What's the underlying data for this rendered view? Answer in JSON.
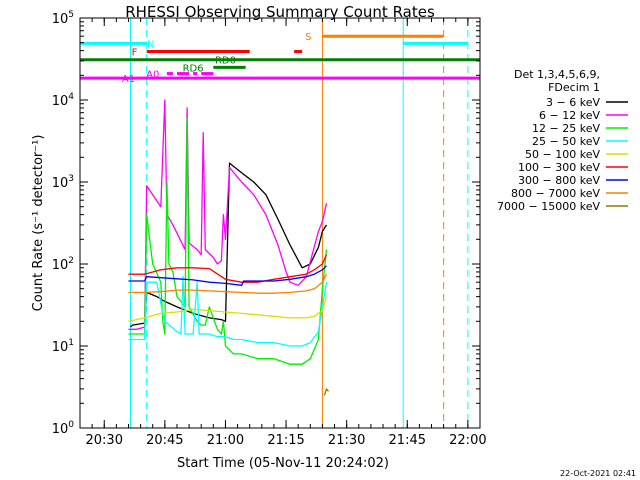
{
  "chart_data": {
    "type": "line",
    "title": "RHESSI Observing Summary Count Rates",
    "xlabel": "Start Time (05-Nov-11 20:24:02)",
    "ylabel": "Count Rate (s⁻¹ detector⁻¹)",
    "yscale": "log",
    "ylim": [
      1,
      100000
    ],
    "xlim_minutes_after_start": [
      0,
      99
    ],
    "x_ticks": [
      {
        "minute": 6,
        "label": "20:30"
      },
      {
        "minute": 21,
        "label": "20:45"
      },
      {
        "minute": 36,
        "label": "21:00"
      },
      {
        "minute": 51,
        "label": "21:15"
      },
      {
        "minute": 66,
        "label": "21:30"
      },
      {
        "minute": 81,
        "label": "21:45"
      },
      {
        "minute": 96,
        "label": "22:00"
      }
    ],
    "y_ticks": [
      {
        "value": 1,
        "base": "10",
        "exp": "0"
      },
      {
        "value": 10,
        "base": "10",
        "exp": "1"
      },
      {
        "value": 100,
        "base": "10",
        "exp": "2"
      },
      {
        "value": 1000,
        "base": "10",
        "exp": "3"
      },
      {
        "value": 10000,
        "base": "10",
        "exp": "4"
      },
      {
        "value": 100000,
        "base": "10",
        "exp": "5"
      }
    ],
    "legend": {
      "position": "right",
      "header": [
        "Det 1,3,4,5,6,9,",
        "FDecim 1"
      ],
      "entries": [
        {
          "label": "3 − 6 keV",
          "color": "#000000"
        },
        {
          "label": "6 − 12 keV",
          "color": "#ff00ff"
        },
        {
          "label": "12 − 25 keV",
          "color": "#00ee00"
        },
        {
          "label": "25 − 50 keV",
          "color": "#00ffff"
        },
        {
          "label": "50 − 100 keV",
          "color": "#dddd00"
        },
        {
          "label": "100 − 300 keV",
          "color": "#ff0000"
        },
        {
          "label": "300 − 800 keV",
          "color": "#0000ff"
        },
        {
          "label": "800 − 7000 keV",
          "color": "#ff7f00"
        },
        {
          "label": "7000 − 15000 keV",
          "color": "#808000"
        }
      ]
    },
    "series": [
      {
        "name": "3 − 6 keV",
        "color": "#000000",
        "points": [
          [
            12.5,
            17
          ],
          [
            13,
            18
          ],
          [
            16,
            19
          ],
          [
            16.5,
            45
          ],
          [
            19,
            40
          ],
          [
            21,
            35
          ],
          [
            24,
            30
          ],
          [
            28,
            25
          ],
          [
            32,
            22
          ],
          [
            35,
            21
          ],
          [
            36,
            20
          ],
          [
            37,
            1700
          ],
          [
            40,
            1300
          ],
          [
            43,
            1000
          ],
          [
            46,
            700
          ],
          [
            49,
            350
          ],
          [
            52,
            170
          ],
          [
            55,
            90
          ],
          [
            57,
            100
          ],
          [
            59,
            160
          ],
          [
            60,
            250
          ],
          [
            61,
            300
          ]
        ]
      },
      {
        "name": "6 − 12 keV",
        "color": "#ff00ff",
        "points": [
          [
            12,
            16
          ],
          [
            14,
            16
          ],
          [
            16,
            17
          ],
          [
            16.5,
            900
          ],
          [
            18,
            700
          ],
          [
            20,
            500
          ],
          [
            21,
            10000
          ],
          [
            21.5,
            400
          ],
          [
            23,
            300
          ],
          [
            26,
            150
          ],
          [
            26.5,
            8000
          ],
          [
            27,
            180
          ],
          [
            29,
            150
          ],
          [
            30,
            130
          ],
          [
            30.5,
            4000
          ],
          [
            31,
            150
          ],
          [
            33,
            120
          ],
          [
            34,
            100
          ],
          [
            35,
            110
          ],
          [
            35.5,
            400
          ],
          [
            36,
            200
          ],
          [
            37,
            1500
          ],
          [
            40,
            1000
          ],
          [
            43,
            700
          ],
          [
            46,
            400
          ],
          [
            49,
            170
          ],
          [
            51,
            80
          ],
          [
            52,
            60
          ],
          [
            54,
            55
          ],
          [
            56,
            70
          ],
          [
            59,
            250
          ],
          [
            60,
            330
          ],
          [
            61,
            550
          ]
        ]
      },
      {
        "name": "12 − 25 keV",
        "color": "#00ee00",
        "points": [
          [
            12,
            14
          ],
          [
            14,
            14
          ],
          [
            16,
            14
          ],
          [
            16.5,
            400
          ],
          [
            18,
            100
          ],
          [
            20,
            60
          ],
          [
            20.5,
            20
          ],
          [
            21,
            14
          ],
          [
            21.5,
            1000
          ],
          [
            22,
            100
          ],
          [
            23,
            80
          ],
          [
            24,
            40
          ],
          [
            26,
            30
          ],
          [
            26.5,
            6000
          ],
          [
            27,
            30
          ],
          [
            29,
            20
          ],
          [
            30,
            18
          ],
          [
            31,
            18
          ],
          [
            32,
            30
          ],
          [
            34,
            16
          ],
          [
            35,
            14
          ],
          [
            35.5,
            20
          ],
          [
            36,
            10
          ],
          [
            38,
            8
          ],
          [
            40,
            8
          ],
          [
            44,
            7
          ],
          [
            48,
            7
          ],
          [
            52,
            6
          ],
          [
            55,
            6
          ],
          [
            57,
            7
          ],
          [
            59,
            12
          ],
          [
            60,
            50
          ],
          [
            61,
            150
          ]
        ]
      },
      {
        "name": "25 − 50 keV",
        "color": "#00ffff",
        "points": [
          [
            12,
            12
          ],
          [
            14,
            12
          ],
          [
            16,
            12
          ],
          [
            16.5,
            60
          ],
          [
            19,
            60
          ],
          [
            20.5,
            25
          ],
          [
            21,
            20
          ],
          [
            24,
            15
          ],
          [
            25,
            14
          ],
          [
            25.5,
            70
          ],
          [
            26,
            14
          ],
          [
            28,
            14
          ],
          [
            29,
            60
          ],
          [
            29.5,
            14
          ],
          [
            32,
            14
          ],
          [
            34,
            13
          ],
          [
            36,
            13
          ],
          [
            38,
            12
          ],
          [
            40,
            12
          ],
          [
            44,
            11
          ],
          [
            48,
            11
          ],
          [
            52,
            10
          ],
          [
            55,
            10
          ],
          [
            57,
            11
          ],
          [
            59,
            15
          ],
          [
            60,
            30
          ],
          [
            61,
            60
          ]
        ]
      },
      {
        "name": "50 − 100 keV",
        "color": "#dddd00",
        "points": [
          [
            12,
            20
          ],
          [
            16,
            22
          ],
          [
            20,
            25
          ],
          [
            24,
            26
          ],
          [
            28,
            28
          ],
          [
            32,
            27
          ],
          [
            36,
            26
          ],
          [
            40,
            25
          ],
          [
            44,
            24
          ],
          [
            48,
            23
          ],
          [
            52,
            22
          ],
          [
            56,
            22
          ],
          [
            58,
            23
          ],
          [
            60,
            27
          ],
          [
            61,
            40
          ]
        ]
      },
      {
        "name": "100 − 300 keV",
        "color": "#ff0000",
        "points": [
          [
            12,
            75
          ],
          [
            16,
            75
          ],
          [
            20,
            85
          ],
          [
            24,
            90
          ],
          [
            28,
            90
          ],
          [
            32,
            88
          ],
          [
            36,
            65
          ],
          [
            40,
            60
          ],
          [
            44,
            60
          ],
          [
            48,
            65
          ],
          [
            52,
            70
          ],
          [
            56,
            75
          ],
          [
            58,
            85
          ],
          [
            60,
            100
          ],
          [
            61,
            130
          ]
        ]
      },
      {
        "name": "300 − 800 keV",
        "color": "#0000ff",
        "points": [
          [
            12,
            62
          ],
          [
            16,
            62
          ],
          [
            16.5,
            70
          ],
          [
            20,
            68
          ],
          [
            24,
            66
          ],
          [
            28,
            64
          ],
          [
            32,
            60
          ],
          [
            36,
            58
          ],
          [
            40,
            55
          ],
          [
            40.5,
            62
          ],
          [
            44,
            62
          ],
          [
            48,
            62
          ],
          [
            52,
            65
          ],
          [
            56,
            70
          ],
          [
            58,
            75
          ],
          [
            60,
            85
          ],
          [
            61,
            95
          ]
        ]
      },
      {
        "name": "800 − 7000 keV",
        "color": "#ff7f00",
        "points": [
          [
            12,
            45
          ],
          [
            16,
            45
          ],
          [
            20,
            46
          ],
          [
            24,
            48
          ],
          [
            28,
            48
          ],
          [
            32,
            47
          ],
          [
            36,
            46
          ],
          [
            40,
            45
          ],
          [
            44,
            44
          ],
          [
            48,
            44
          ],
          [
            52,
            45
          ],
          [
            56,
            47
          ],
          [
            58,
            50
          ],
          [
            60,
            60
          ],
          [
            61,
            75
          ]
        ]
      },
      {
        "name": "7000 − 15000 keV",
        "color": "#808000",
        "points": [
          [
            60.5,
            2.5
          ],
          [
            61,
            3
          ],
          [
            61.5,
            2.8
          ]
        ]
      }
    ],
    "vertical_lines": [
      {
        "minute": 12.5,
        "color": "#00ffff",
        "style": "solid"
      },
      {
        "minute": 16.5,
        "color": "#00ffff",
        "style": "dashed"
      },
      {
        "minute": 60,
        "color": "#ff7f00",
        "style": "solid"
      },
      {
        "minute": 80,
        "color": "#00ffff",
        "style": "solid"
      },
      {
        "minute": 90,
        "color": "#ff7f00",
        "style": "dashed"
      },
      {
        "minute": 96,
        "color": "#00ffff",
        "style": "dashed"
      }
    ],
    "flag_bars": [
      {
        "label": "N",
        "color": "#00ffff",
        "y": 49000,
        "segments": [
          [
            0,
            16.5
          ],
          [
            80,
            96
          ]
        ],
        "label_minute": 17.5
      },
      {
        "label": "S",
        "color": "#ff7f00",
        "y": 60000,
        "segments": [
          [
            60,
            90
          ]
        ],
        "label_minute": 56.5
      },
      {
        "label": "F",
        "color": "#ff0000",
        "y": 39000,
        "segments": [
          [
            16.5,
            42
          ],
          [
            53,
            55
          ]
        ],
        "label_minute": 13.5
      },
      {
        "label": "RD0",
        "color": "#008000",
        "y": 31000,
        "segments": [
          [
            0,
            99
          ]
        ],
        "label_minute": 36
      },
      {
        "label": "RD6",
        "color": "#008000",
        "y": 25000,
        "segments": [
          [
            33,
            41
          ]
        ],
        "label_minute": 28
      },
      {
        "label": "A0",
        "color": "#ff00ff",
        "y": 21000,
        "segments": [
          [
            21.5,
            23
          ],
          [
            24,
            27
          ],
          [
            28,
            29
          ],
          [
            30,
            33
          ]
        ],
        "label_minute": 18
      },
      {
        "label": "A1",
        "color": "#ff00ff",
        "y": 18500,
        "segments": [
          [
            0,
            99
          ]
        ],
        "label_minute": 12
      }
    ],
    "timestamp": "22-Oct-2021 02:41"
  }
}
